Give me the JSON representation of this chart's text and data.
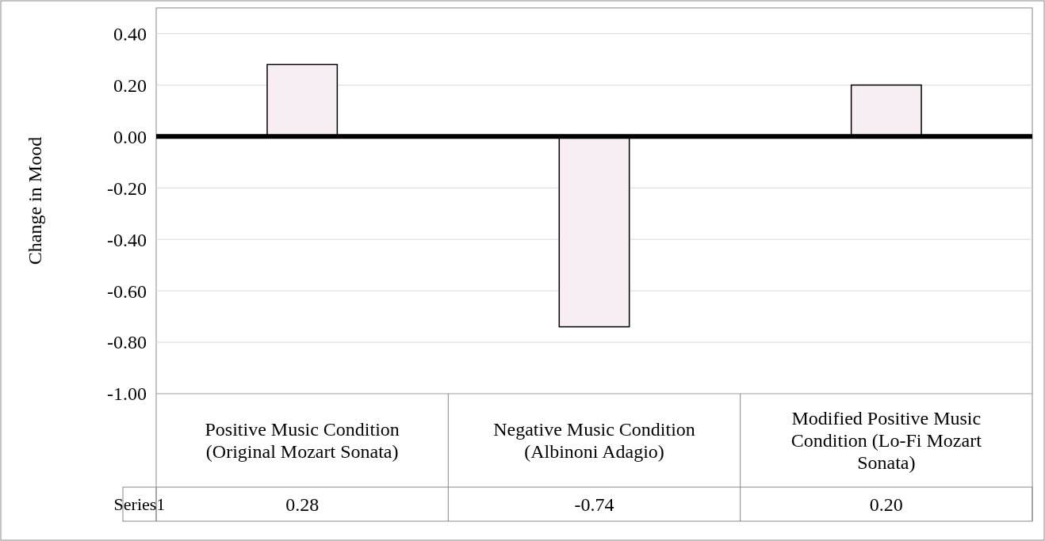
{
  "chart_data": {
    "type": "bar",
    "ylabel": "Change in Mood",
    "categories": [
      "Positive Music Condition (Original Mozart Sonata)",
      "Negative Music Condition (Albinoni Adagio)",
      "Modified Positive Music Condition (Lo-Fi Mozart Sonata)"
    ],
    "series": [
      {
        "name": "Series1",
        "color": "#f6eef2",
        "values": [
          0.28,
          -0.74,
          0.2
        ],
        "value_labels": [
          "0.28",
          "-0.74",
          "0.20"
        ]
      }
    ],
    "ylim": [
      -1,
      0.5
    ],
    "yticks": [
      {
        "value": -1,
        "label": "-1.00"
      },
      {
        "value": -0.8,
        "label": "-0.80"
      },
      {
        "value": -0.6,
        "label": "-0.60"
      },
      {
        "value": -0.4,
        "label": "-0.40"
      },
      {
        "value": -0.2,
        "label": "-0.20"
      },
      {
        "value": 0,
        "label": "0.00"
      },
      {
        "value": 0.2,
        "label": "0.20"
      },
      {
        "value": 0.4,
        "label": "0.40"
      }
    ],
    "grid": "y"
  }
}
